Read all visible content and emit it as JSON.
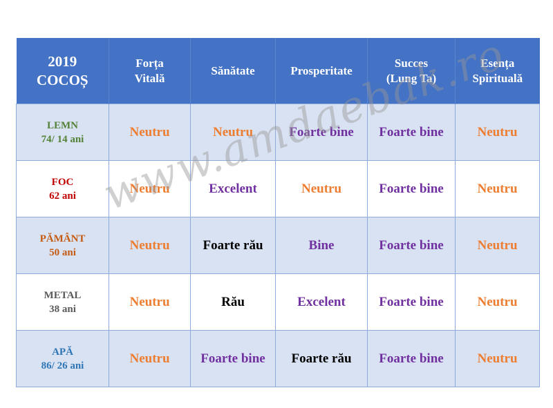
{
  "header": {
    "corner_year": "2019",
    "corner_sign": "COCOȘ",
    "columns": [
      [
        "Forța",
        "Vitală"
      ],
      [
        "Sănătate"
      ],
      [
        "Prosperitate"
      ],
      [
        "Succes",
        "(Lung Ta)"
      ],
      [
        "Esența",
        "Spirituală"
      ]
    ]
  },
  "rows": [
    {
      "element": "LEMN",
      "ages": "74/ 14 ani",
      "color": "#538135",
      "shade": true,
      "cells": [
        {
          "t": "Neutru",
          "c": "neutral"
        },
        {
          "t": "Neutru",
          "c": "neutral"
        },
        {
          "t": "Foarte bine",
          "c": "good"
        },
        {
          "t": "Foarte bine",
          "c": "good"
        },
        {
          "t": "Neutru",
          "c": "neutral"
        }
      ]
    },
    {
      "element": "FOC",
      "ages": "62 ani",
      "color": "#c00000",
      "shade": false,
      "cells": [
        {
          "t": "Neutru",
          "c": "neutral"
        },
        {
          "t": "Excelent",
          "c": "good"
        },
        {
          "t": "Neutru",
          "c": "neutral"
        },
        {
          "t": "Foarte bine",
          "c": "good"
        },
        {
          "t": "Neutru",
          "c": "neutral"
        }
      ]
    },
    {
      "element": "PĂMÂNT",
      "ages": "50 ani",
      "color": "#c55a11",
      "shade": true,
      "cells": [
        {
          "t": "Neutru",
          "c": "neutral"
        },
        {
          "t": "Foarte rău",
          "c": "bad"
        },
        {
          "t": "Bine",
          "c": "good"
        },
        {
          "t": "Foarte bine",
          "c": "good"
        },
        {
          "t": "Neutru",
          "c": "neutral"
        }
      ]
    },
    {
      "element": "METAL",
      "ages": "38 ani",
      "color": "#595959",
      "shade": false,
      "cells": [
        {
          "t": "Neutru",
          "c": "neutral"
        },
        {
          "t": "Rău",
          "c": "bad"
        },
        {
          "t": "Excelent",
          "c": "good"
        },
        {
          "t": "Foarte bine",
          "c": "good"
        },
        {
          "t": "Neutru",
          "c": "neutral"
        }
      ]
    },
    {
      "element": "APĂ",
      "ages": "86/ 26 ani",
      "color": "#2e75b6",
      "shade": true,
      "cells": [
        {
          "t": "Neutru",
          "c": "neutral"
        },
        {
          "t": "Foarte bine",
          "c": "good"
        },
        {
          "t": "Foarte rău",
          "c": "bad"
        },
        {
          "t": "Foarte bine",
          "c": "good"
        },
        {
          "t": "Neutru",
          "c": "neutral"
        }
      ]
    }
  ],
  "colors": {
    "neutral": "#ed7d31",
    "good": "#7030a0",
    "bad": "#000000",
    "header_bg": "#4472c4"
  },
  "watermark": "www.amdaebak.ro"
}
